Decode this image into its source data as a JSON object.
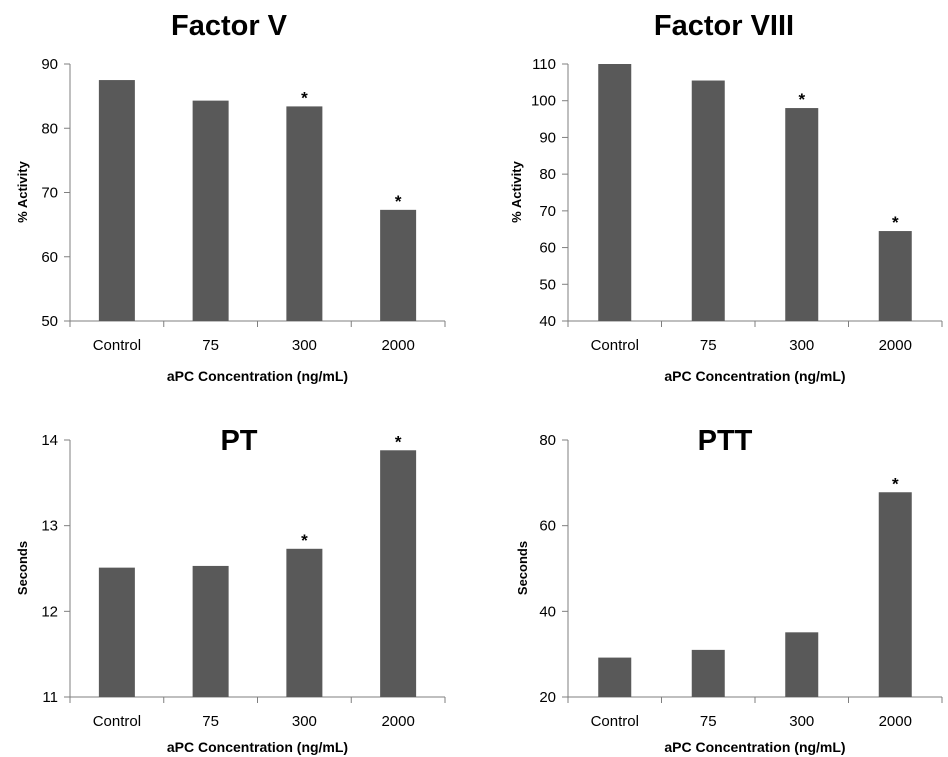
{
  "chart_data": [
    {
      "type": "bar",
      "title": "Factor V",
      "xlabel": "aPC Concentration (ng/mL)",
      "ylabel": "% Activity",
      "categories": [
        "Control",
        "75",
        "300",
        "2000"
      ],
      "values": [
        87.5,
        84.3,
        83.4,
        67.3
      ],
      "significant": [
        "",
        "",
        "*",
        "*"
      ],
      "ylim": [
        50,
        90
      ],
      "yticks": [
        "50",
        "60",
        "70",
        "80",
        "90"
      ],
      "grid": false,
      "legend": "none"
    },
    {
      "type": "bar",
      "title": "Factor VIII",
      "xlabel": "aPC Concentration (ng/mL)",
      "ylabel": "% Activity",
      "categories": [
        "Control",
        "75",
        "300",
        "2000"
      ],
      "values": [
        110,
        105.5,
        98,
        64.5
      ],
      "significant": [
        "",
        "",
        "*",
        "*"
      ],
      "ylim": [
        40,
        110
      ],
      "yticks": [
        "40",
        "50",
        "60",
        "70",
        "80",
        "90",
        "100",
        "110"
      ],
      "grid": false,
      "legend": "none"
    },
    {
      "type": "bar",
      "title": "PT",
      "xlabel": "aPC Concentration (ng/mL)",
      "ylabel": "Seconds",
      "categories": [
        "Control",
        "75",
        "300",
        "2000"
      ],
      "values": [
        12.51,
        12.53,
        12.73,
        13.88
      ],
      "significant": [
        "",
        "",
        "*",
        "*"
      ],
      "ylim": [
        11,
        14
      ],
      "yticks": [
        "11",
        "12",
        "13",
        "14"
      ],
      "grid": false,
      "legend": "none"
    },
    {
      "type": "bar",
      "title": "PTT",
      "xlabel": "aPC Concentration (ng/mL)",
      "ylabel": "Seconds",
      "categories": [
        "Control",
        "75",
        "300",
        "2000"
      ],
      "values": [
        29.2,
        31,
        35.1,
        67.8
      ],
      "significant": [
        "",
        "",
        "",
        "*"
      ],
      "ylim": [
        20,
        80
      ],
      "yticks": [
        "20",
        "40",
        "60",
        "80"
      ],
      "grid": false,
      "legend": "none"
    }
  ]
}
